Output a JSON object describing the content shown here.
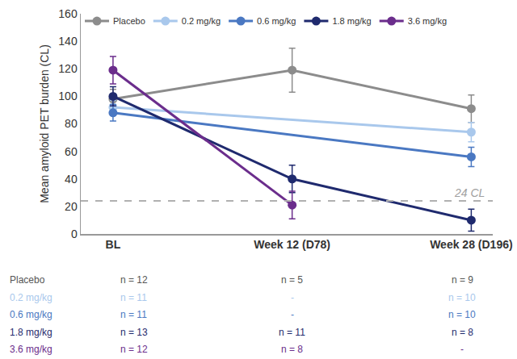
{
  "chart_data": {
    "type": "line",
    "y_label": "Mean amyloid PET burden (CL)",
    "categories": [
      "BL",
      "Week 12 (D78)",
      "Week 28 (D196)"
    ],
    "series": [
      {
        "name": "Placebo",
        "color": "#8c8c8c",
        "values": [
          98,
          119,
          91
        ],
        "errors": [
          7,
          16,
          10
        ]
      },
      {
        "name": "0.2 mg/kg",
        "color": "#a9c8ec",
        "values": [
          92,
          null,
          74
        ],
        "errors": [
          5,
          null,
          7
        ]
      },
      {
        "name": "0.6 mg/kg",
        "color": "#4a78c2",
        "values": [
          88,
          null,
          56
        ],
        "errors": [
          6,
          null,
          7
        ]
      },
      {
        "name": "1.8 mg/kg",
        "color": "#1f2a6e",
        "values": [
          100,
          40,
          10
        ],
        "errors": [
          7,
          10,
          8
        ]
      },
      {
        "name": "3.6 mg/kg",
        "color": "#6b2d8c",
        "values": [
          119,
          21,
          null
        ],
        "errors": [
          10,
          10,
          null
        ]
      }
    ],
    "ylim": [
      0,
      160
    ],
    "yticks": [
      0,
      20,
      40,
      60,
      80,
      100,
      120,
      140,
      160
    ],
    "grid": false,
    "legend": "top",
    "marker": "circle",
    "reference_line": {
      "value": 24,
      "label": "24 CL",
      "line_style": "dash"
    }
  },
  "n_table": {
    "rows": [
      {
        "label": "Placebo",
        "cells": [
          "n = 12",
          "n = 5",
          "n = 9"
        ]
      },
      {
        "label": "0.2 mg/kg",
        "cells": [
          "n = 11",
          "-",
          "n = 10"
        ]
      },
      {
        "label": "0.6 mg/kg",
        "cells": [
          "n = 11",
          "-",
          "n = 10"
        ]
      },
      {
        "label": "1.8 mg/kg",
        "cells": [
          "n = 13",
          "n = 11",
          "n = 8"
        ]
      },
      {
        "label": "3.6 mg/kg",
        "cells": [
          "n = 12",
          "n = 8",
          "-"
        ]
      }
    ]
  }
}
